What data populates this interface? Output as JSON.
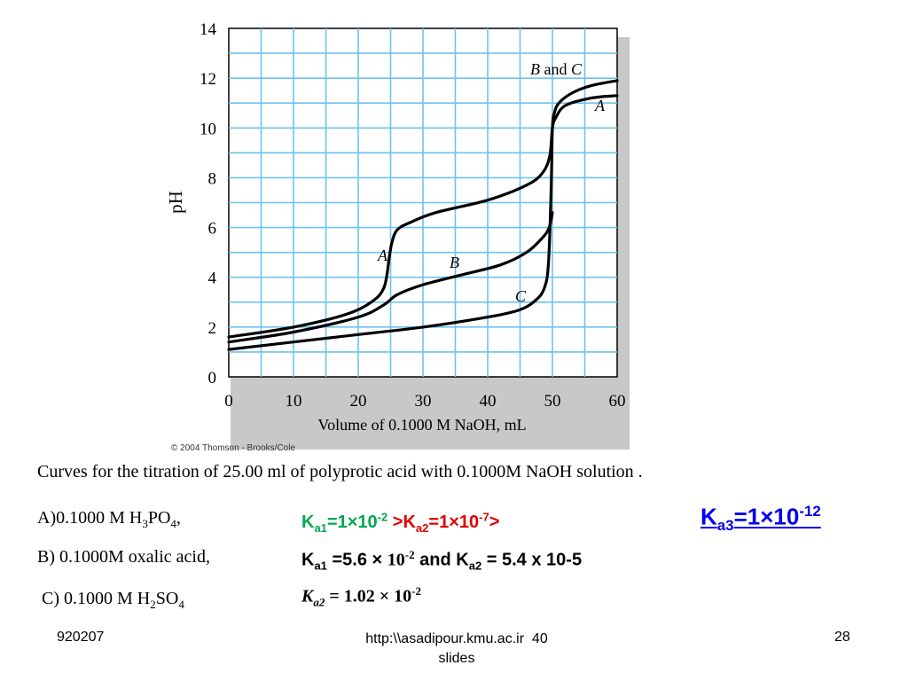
{
  "chart_data": {
    "type": "line",
    "xlabel": "Volume of 0.1000 M NaOH, mL",
    "ylabel": "pH",
    "xlim": [
      0,
      60
    ],
    "ylim": [
      0,
      14
    ],
    "xticks": [
      0,
      10,
      20,
      30,
      40,
      50,
      60
    ],
    "yticks": [
      0,
      2,
      4,
      6,
      8,
      10,
      12,
      14
    ],
    "grid": true,
    "series": [
      {
        "name": "A",
        "x": [
          0,
          10,
          18,
          22,
          24,
          24.8,
          25.2,
          26,
          28,
          32,
          40,
          46,
          48.5,
          49.6,
          50,
          50.5,
          52,
          56,
          60
        ],
        "y": [
          1.6,
          2.0,
          2.5,
          3.0,
          3.6,
          4.8,
          5.4,
          5.9,
          6.2,
          6.6,
          7.1,
          7.7,
          8.2,
          8.9,
          10.0,
          10.4,
          10.9,
          11.2,
          11.3
        ]
      },
      {
        "name": "B",
        "x": [
          0,
          10,
          20,
          24,
          26,
          30,
          36,
          42,
          46,
          48.5,
          49.5,
          50
        ],
        "y": [
          1.4,
          1.8,
          2.4,
          2.9,
          3.3,
          3.7,
          4.1,
          4.5,
          5.0,
          5.6,
          6.0,
          6.6
        ]
      },
      {
        "name": "C",
        "x": [
          0,
          10,
          20,
          30,
          40,
          45,
          47.5,
          48.8,
          49.4,
          49.8,
          50,
          50.3,
          51,
          53,
          56,
          60
        ],
        "y": [
          1.1,
          1.4,
          1.7,
          2.0,
          2.4,
          2.7,
          3.1,
          3.6,
          4.6,
          7.5,
          10.0,
          10.6,
          11.0,
          11.4,
          11.7,
          11.9
        ]
      }
    ],
    "annotations": {
      "a": "A",
      "b": "B",
      "c": "C",
      "bc_b": "B",
      "bc_and": " and ",
      "bc_c": "C",
      "top_a": "A"
    }
  },
  "copyright": "© 2004 Thomson - Brooks/Cole",
  "caption": "Curves for the titration of  25.00 ml of  polyprotic acid with 0.1000M NaOH solution .",
  "items": {
    "a": {
      "label": "A)0.1000 M H",
      "sub1": "3",
      "mid": "PO",
      "sub2": "4",
      "end": ","
    },
    "b": {
      "label": "B) 0.1000M oxalic acid,"
    },
    "c": {
      "label": " C) 0.1000 M H",
      "sub1": "2",
      "mid": "SO",
      "sub2": "4"
    }
  },
  "equations": {
    "line1": {
      "ka1_k": "K",
      "ka1_sub": "a1",
      "ka1_val": "=1×10",
      "ka1_exp": "-2",
      "gt1": " >",
      "ka2_k": "K",
      "ka2_sub": "a2",
      "ka2_val": "=1×10",
      "ka2_exp": "-7",
      "gt2": ">",
      "color_green": "#00a651",
      "color_red": "#e00000"
    },
    "ka3": {
      "k": "K",
      "sub": "a3",
      "val": "=1×10",
      "exp": "-12",
      "color": "#0000ee"
    },
    "line2": {
      "k1": "K",
      "sub1": "a1",
      "val1": " =5.6 × ",
      "base": "10",
      "exp": "-2",
      "and": " and K",
      "sub2": "a2",
      "val2": " = 5.4 x 10-5"
    },
    "line3": {
      "k": "K",
      "sub": "a2",
      "val": " = 1.02 × 10",
      "exp": "-2"
    }
  },
  "footer": {
    "left": "920207",
    "center_line1": "http:\\\\asadipour.kmu.ac.ir  40",
    "center_line2": "slides",
    "right": "28"
  }
}
